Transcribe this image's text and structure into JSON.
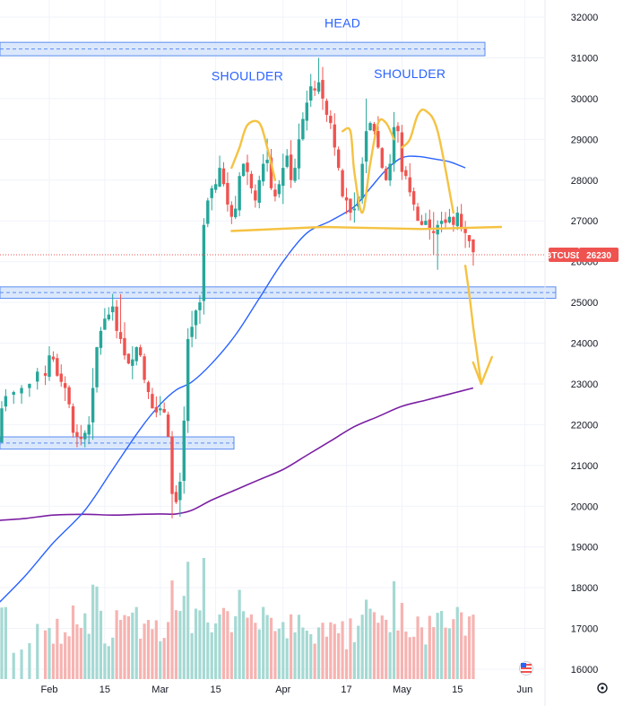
{
  "chart_data": {
    "type": "candlestick",
    "symbol": "BTCUSD",
    "last_price": "26230",
    "colors": {
      "up": "#26a69a",
      "down": "#ef5350",
      "vol_up": "#a5d9d3",
      "vol_down": "#f6b3b1",
      "ma_short": "#2962ff",
      "ma_long": "#7b1fa2",
      "pattern": "#f5c242",
      "zone_fill": "#cfe0fb",
      "zone_line": "#5b8def",
      "badge": "#ef5350"
    },
    "y_axis": {
      "range": [
        15800,
        32400
      ],
      "ticks": [
        "16000",
        "17000",
        "18000",
        "19000",
        "20000",
        "21000",
        "22000",
        "23000",
        "24000",
        "25000",
        "26000",
        "27000",
        "28000",
        "29000",
        "30000",
        "31000",
        "32000"
      ],
      "side": "right"
    },
    "x_axis": {
      "labels": [
        {
          "text": "Feb",
          "day": 31
        },
        {
          "text": "15",
          "day": 45
        },
        {
          "text": "Mar",
          "day": 59
        },
        {
          "text": "15",
          "day": 73
        },
        {
          "text": "Apr",
          "day": 90
        },
        {
          "text": "17",
          "day": 106
        },
        {
          "text": "May",
          "day": 120
        },
        {
          "text": "15",
          "day": 134
        },
        {
          "text": "Jun",
          "day": 151
        }
      ]
    },
    "annotations": [
      {
        "text": "HEAD",
        "day": 105,
        "price": 31750
      },
      {
        "text": "SHOULDER",
        "day": 81,
        "price": 30450
      },
      {
        "text": "SHOULDER",
        "day": 122,
        "price": 30500
      }
    ],
    "zones": [
      {
        "from": 31050,
        "to": 31380
      },
      {
        "from": 25100,
        "to": 25380
      },
      {
        "from": 21400,
        "to": 21700
      }
    ],
    "close_anchors": [
      [
        18,
        21600
      ],
      [
        19,
        22400
      ],
      [
        20,
        22700
      ],
      [
        22,
        22800
      ],
      [
        24,
        22900
      ],
      [
        26,
        23000
      ],
      [
        28,
        23300
      ],
      [
        30,
        23200
      ],
      [
        31,
        23700
      ],
      [
        32,
        23600
      ],
      [
        33,
        23200
      ],
      [
        34,
        23050
      ],
      [
        35,
        22900
      ],
      [
        36,
        22500
      ],
      [
        37,
        21800
      ],
      [
        38,
        21700
      ],
      [
        39,
        21650
      ],
      [
        40,
        21800
      ],
      [
        41,
        22000
      ],
      [
        42,
        22900
      ],
      [
        43,
        23900
      ],
      [
        44,
        24300
      ],
      [
        45,
        24600
      ],
      [
        46,
        24700
      ],
      [
        47,
        24900
      ],
      [
        48,
        24300
      ],
      [
        49,
        24100
      ],
      [
        50,
        23700
      ],
      [
        51,
        23500
      ],
      [
        52,
        23600
      ],
      [
        53,
        23900
      ],
      [
        54,
        23700
      ],
      [
        55,
        23100
      ],
      [
        56,
        22800
      ],
      [
        57,
        22400
      ],
      [
        58,
        22300
      ],
      [
        59,
        22400
      ],
      [
        60,
        22300
      ],
      [
        61,
        21700
      ],
      [
        62,
        20300
      ],
      [
        63,
        20100
      ],
      [
        64,
        20600
      ],
      [
        65,
        22100
      ],
      [
        66,
        24100
      ],
      [
        67,
        24400
      ],
      [
        68,
        24800
      ],
      [
        69,
        25000
      ],
      [
        70,
        26900
      ],
      [
        71,
        27500
      ],
      [
        72,
        27800
      ],
      [
        73,
        27900
      ],
      [
        74,
        28300
      ],
      [
        75,
        27900
      ],
      [
        76,
        27400
      ],
      [
        77,
        27100
      ],
      [
        78,
        27300
      ],
      [
        79,
        28100
      ],
      [
        80,
        28400
      ],
      [
        81,
        28200
      ],
      [
        82,
        27800
      ],
      [
        83,
        27500
      ],
      [
        84,
        28000
      ],
      [
        85,
        28400
      ],
      [
        86,
        28500
      ],
      [
        87,
        27800
      ],
      [
        88,
        27600
      ],
      [
        89,
        27900
      ],
      [
        90,
        28300
      ],
      [
        91,
        28600
      ],
      [
        92,
        28000
      ],
      [
        93,
        28300
      ],
      [
        94,
        29000
      ],
      [
        95,
        29500
      ],
      [
        96,
        29900
      ],
      [
        97,
        30300
      ],
      [
        98,
        30200
      ],
      [
        99,
        30400
      ],
      [
        100,
        30000
      ],
      [
        101,
        29600
      ],
      [
        102,
        29400
      ],
      [
        103,
        28800
      ],
      [
        104,
        28300
      ],
      [
        105,
        27600
      ],
      [
        106,
        27500
      ],
      [
        107,
        27200
      ],
      [
        108,
        27300
      ],
      [
        109,
        27600
      ],
      [
        110,
        28400
      ],
      [
        111,
        29200
      ],
      [
        112,
        29400
      ],
      [
        113,
        29200
      ],
      [
        114,
        28800
      ],
      [
        115,
        28300
      ],
      [
        116,
        28000
      ],
      [
        117,
        28400
      ],
      [
        118,
        29300
      ],
      [
        119,
        29200
      ],
      [
        120,
        28200
      ],
      [
        121,
        28100
      ],
      [
        122,
        27700
      ],
      [
        123,
        27400
      ],
      [
        124,
        27000
      ],
      [
        125,
        26900
      ],
      [
        126,
        27000
      ],
      [
        127,
        26800
      ],
      [
        128,
        26700
      ],
      [
        129,
        26900
      ],
      [
        130,
        27000
      ],
      [
        131,
        26950
      ],
      [
        132,
        27100
      ],
      [
        133,
        26900
      ],
      [
        134,
        27200
      ],
      [
        135,
        26800
      ],
      [
        136,
        26700
      ],
      [
        137,
        26500
      ],
      [
        138,
        26230
      ]
    ],
    "ma_short": [
      [
        18,
        17600
      ],
      [
        25,
        18300
      ],
      [
        32,
        19100
      ],
      [
        40,
        19900
      ],
      [
        47,
        20900
      ],
      [
        54,
        21900
      ],
      [
        59,
        22500
      ],
      [
        63,
        22850
      ],
      [
        67,
        23050
      ],
      [
        72,
        23500
      ],
      [
        78,
        24200
      ],
      [
        84,
        25100
      ],
      [
        90,
        26000
      ],
      [
        96,
        26700
      ],
      [
        102,
        27000
      ],
      [
        108,
        27350
      ],
      [
        112,
        27800
      ],
      [
        116,
        28250
      ],
      [
        120,
        28550
      ],
      [
        124,
        28580
      ],
      [
        128,
        28520
      ],
      [
        132,
        28450
      ],
      [
        136,
        28300
      ]
    ],
    "ma_long": [
      [
        18,
        19650
      ],
      [
        25,
        19700
      ],
      [
        32,
        19780
      ],
      [
        40,
        19800
      ],
      [
        47,
        19780
      ],
      [
        54,
        19800
      ],
      [
        59,
        19810
      ],
      [
        63,
        19810
      ],
      [
        67,
        19900
      ],
      [
        72,
        20150
      ],
      [
        78,
        20400
      ],
      [
        84,
        20650
      ],
      [
        90,
        20900
      ],
      [
        96,
        21250
      ],
      [
        102,
        21600
      ],
      [
        108,
        21950
      ],
      [
        114,
        22200
      ],
      [
        120,
        22450
      ],
      [
        126,
        22600
      ],
      [
        132,
        22750
      ],
      [
        138,
        22900
      ]
    ],
    "pattern": {
      "left_shoulder": [
        [
          77,
          28300
        ],
        [
          79,
          28800
        ],
        [
          81,
          29350
        ],
        [
          84,
          29400
        ],
        [
          86,
          28800
        ],
        [
          88,
          28000
        ]
      ],
      "head": [
        [
          105,
          29200
        ],
        [
          107,
          29200
        ],
        [
          108,
          28200
        ],
        [
          110,
          27200
        ],
        [
          112,
          28400
        ],
        [
          114,
          29400
        ],
        [
          116,
          29400
        ],
        [
          118,
          29000
        ]
      ],
      "right_shoulder": [
        [
          120,
          28800
        ],
        [
          122,
          29000
        ],
        [
          124,
          29600
        ],
        [
          126,
          29700
        ],
        [
          129,
          29200
        ],
        [
          133,
          27200
        ]
      ],
      "neckline": [
        [
          77,
          26750
        ],
        [
          100,
          26850
        ],
        [
          125,
          26800
        ],
        [
          145,
          26850
        ]
      ],
      "arrow": [
        [
          136,
          25900
        ],
        [
          137,
          25200
        ],
        [
          138,
          24400
        ],
        [
          139,
          23700
        ],
        [
          140,
          23000
        ]
      ]
    },
    "volume_max": 1600
  }
}
